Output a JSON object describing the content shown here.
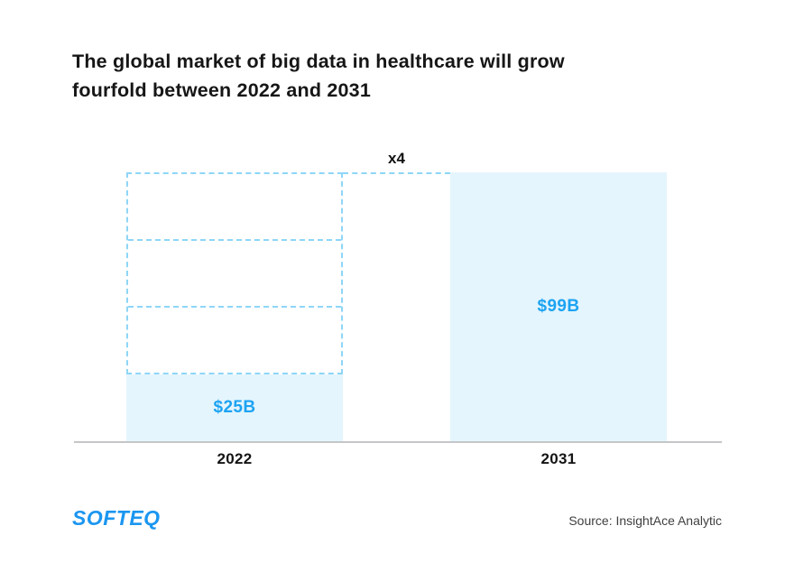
{
  "title": {
    "line1": "The global market of big data in healthcare will grow",
    "line2": "fourfold between 2022 and 2031"
  },
  "chart_data": {
    "type": "bar",
    "title": "The global market of big data in healthcare will grow fourfold between 2022 and 2031",
    "categories": [
      "2022",
      "2031"
    ],
    "values": [
      25,
      99
    ],
    "unit": "USD billions",
    "value_labels": [
      "$25B",
      "$99B"
    ],
    "multiplier_annotation": "x4",
    "annotation_note": "2022 bar topped by 3 equal dashed ghost segments up to the 2031 bar height, illustrating 4x growth",
    "ghost_segments": 3,
    "ylim": [
      0,
      100
    ],
    "grid": false,
    "legend": false,
    "xlabel": "",
    "ylabel": ""
  },
  "footer": {
    "logo_text": "SOFTEQ",
    "source": "Source: InsightAce Analytic"
  },
  "colors": {
    "bar_fill": "#e4f5fd",
    "dashed_border": "#8ed6f7",
    "value_label_blue": "#1ca3f2",
    "logo_blue": "#1b96f0",
    "axis_line": "#c5c6c8",
    "title_text": "#161616",
    "source_text": "#3f3f3f",
    "background": "#ffffff"
  }
}
